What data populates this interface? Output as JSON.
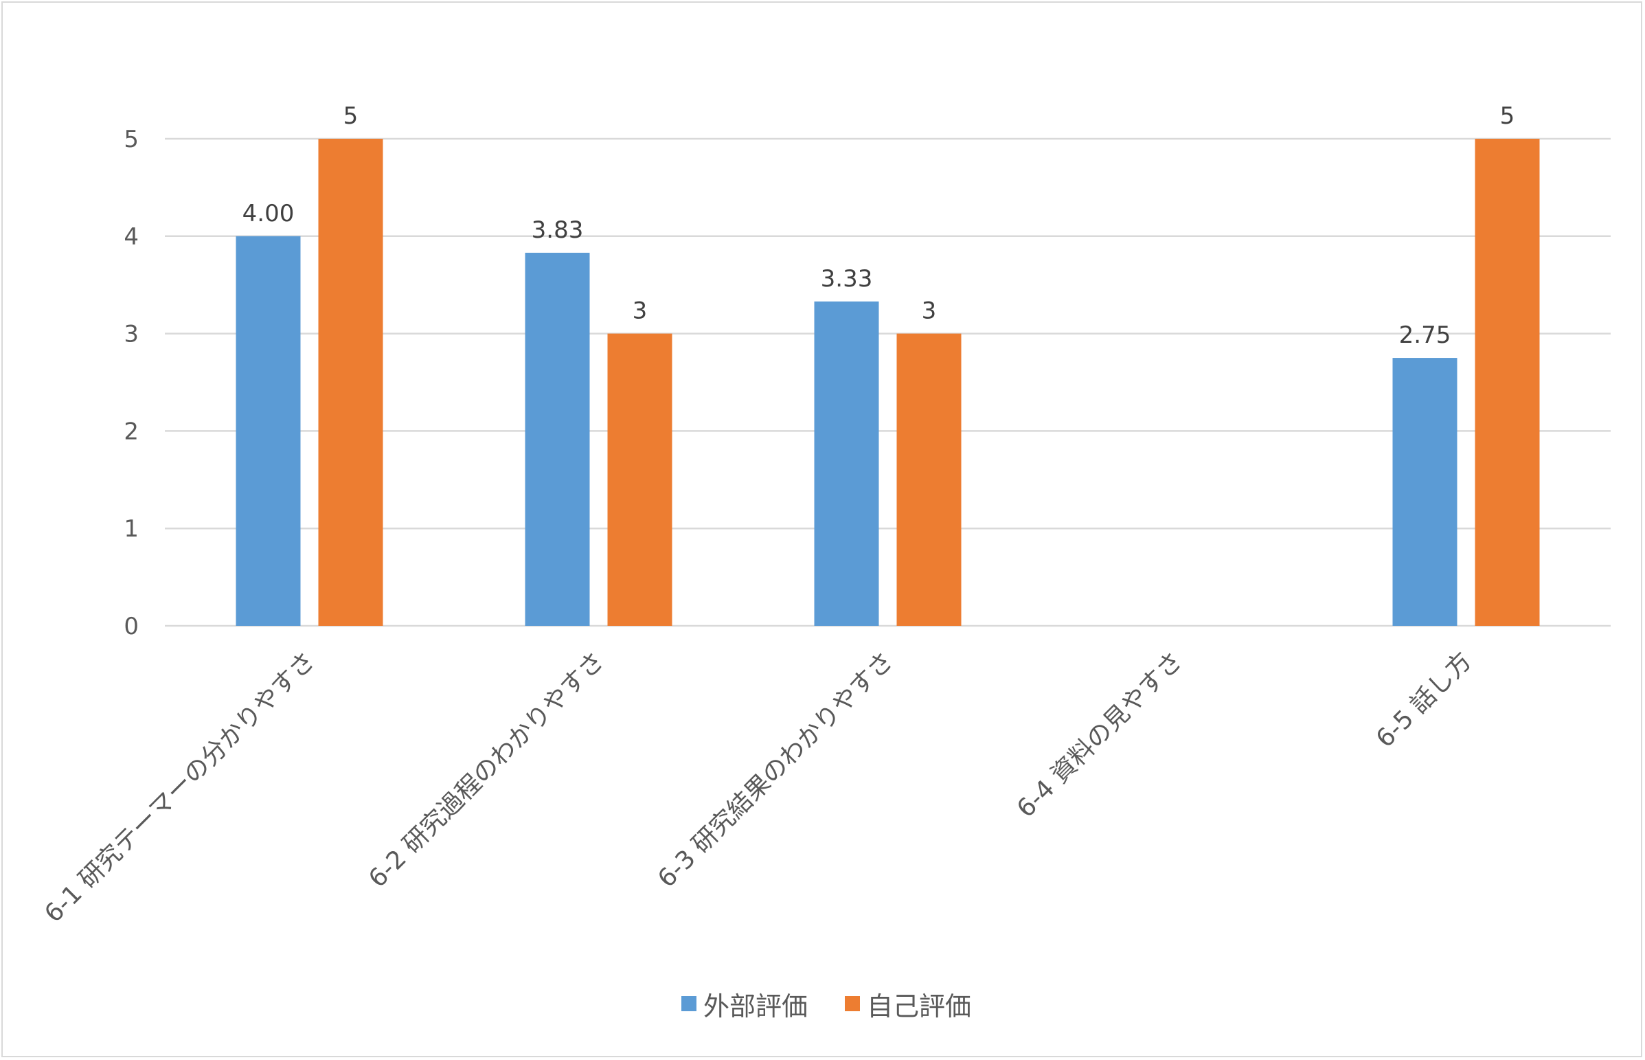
{
  "chart_data": {
    "type": "bar",
    "title": "",
    "xlabel": "",
    "ylabel": "",
    "ylim": [
      0,
      5
    ],
    "yticks": [
      "0",
      "1",
      "2",
      "3",
      "4",
      "5"
    ],
    "grid": true,
    "legend_position": "bottom",
    "categories": [
      "6-1 研究テーマーの分かりやすさ",
      "6-2 研究過程のわかりやすさ",
      "6-3 研究結果のわかりやすさ",
      "6-4 資料の見やすさ",
      "6-5 話し方"
    ],
    "series": [
      {
        "name": "外部評価",
        "color": "#5b9bd5",
        "values": [
          4.0,
          3.83,
          3.33,
          null,
          2.75
        ],
        "labels": [
          "4.00",
          "3.83",
          "3.33",
          "",
          "2.75"
        ]
      },
      {
        "name": "自己評価",
        "color": "#ed7d31",
        "values": [
          5,
          3,
          3,
          null,
          5
        ],
        "labels": [
          "5",
          "3",
          "3",
          "",
          "5"
        ]
      }
    ]
  }
}
